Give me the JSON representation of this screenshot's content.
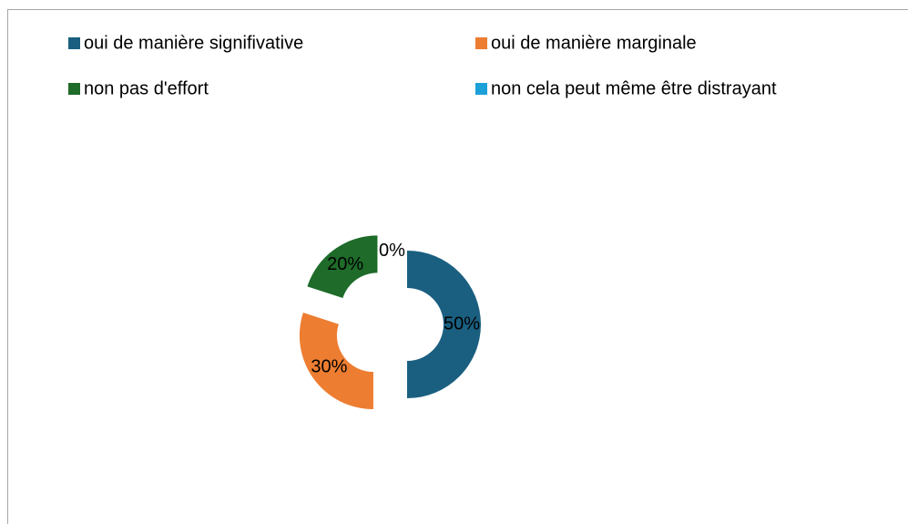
{
  "chart_data": {
    "type": "donut",
    "categories": [
      "oui de manière signifivative",
      "oui de manière marginale",
      "non pas d'effort",
      "non cela peut même être distrayant"
    ],
    "values": [
      50,
      30,
      20,
      0
    ],
    "value_labels": [
      "50%",
      "30%",
      "20%",
      "0%"
    ],
    "colors": [
      "#1a5f80",
      "#ed7d31",
      "#1e6b2a",
      "#1ba0d7"
    ],
    "exploded": true
  }
}
